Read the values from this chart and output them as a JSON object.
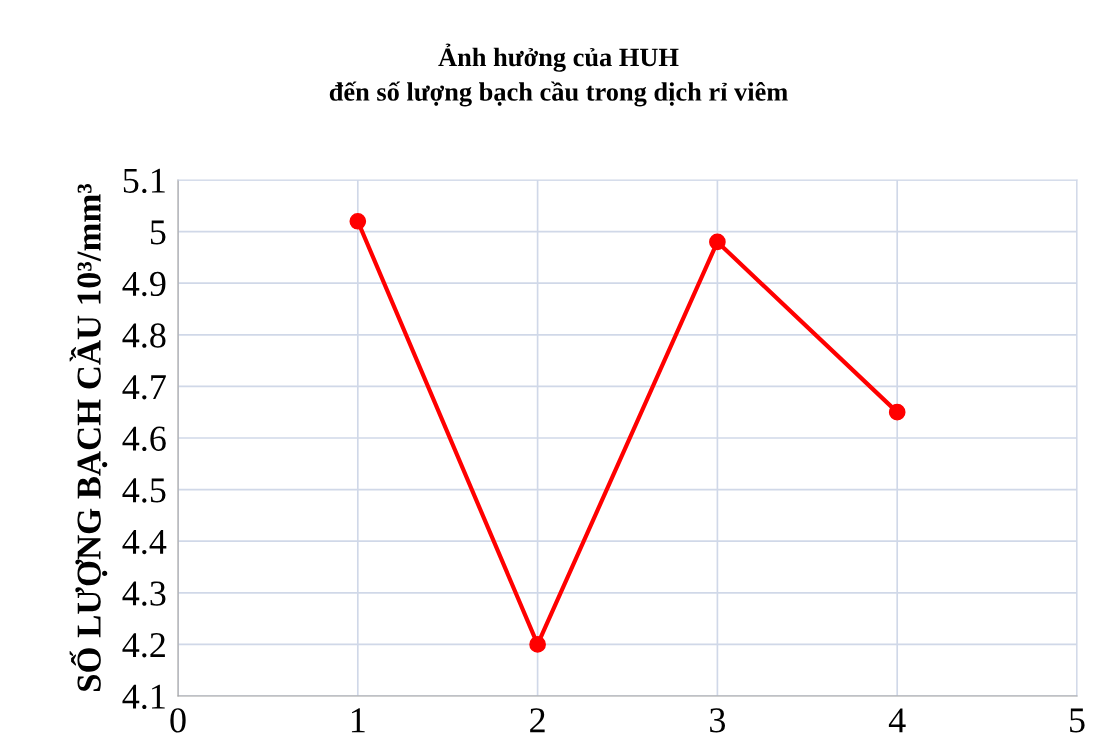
{
  "chart_data": {
    "type": "line",
    "title": "Ảnh hưởng của HUH\nđến số lượng bạch cầu trong dịch rỉ viêm",
    "ylabel": "SỐ LƯỢNG BẠCH CẦU 10³/mm³",
    "x": [
      1,
      2,
      3,
      4
    ],
    "series": [
      {
        "color": "#ff0000",
        "values": [
          5.02,
          4.2,
          4.98,
          4.65
        ]
      }
    ],
    "xlim": [
      0,
      5
    ],
    "xticks": [
      0,
      1,
      2,
      3,
      4,
      5
    ],
    "ylim": [
      4.1,
      5.1
    ],
    "yticks": [
      4.1,
      4.2,
      4.3,
      4.4,
      4.5,
      4.6,
      4.7,
      4.8,
      4.9,
      5,
      5.1
    ],
    "grid": true,
    "marker": "circle",
    "line_style": "solid"
  }
}
